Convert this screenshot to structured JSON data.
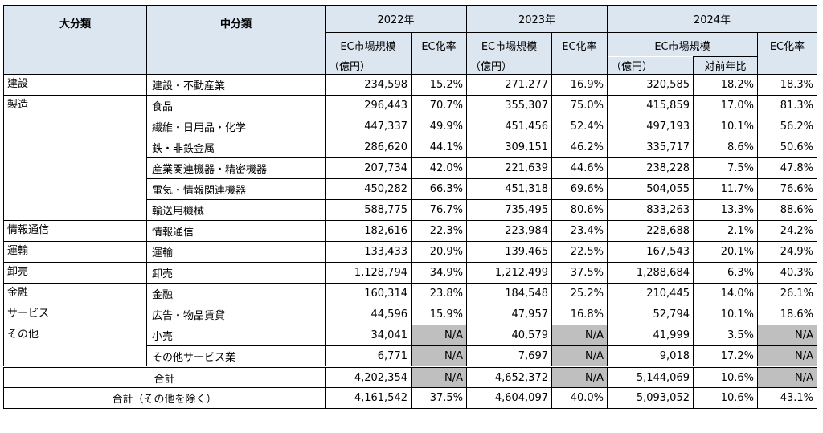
{
  "header": {
    "col_major": "大分類",
    "col_mid": "中分類",
    "years": [
      "2022年",
      "2023年",
      "2024年"
    ],
    "ec_size_label": "EC市場規模",
    "ec_rate_label": "EC化率",
    "unit_label": "（億円）",
    "yoy_label": "対前年比"
  },
  "rows": [
    {
      "major": "建設",
      "mid": "建設・不動産業",
      "v22": "234,598",
      "r22": "15.2%",
      "v23": "271,277",
      "r23": "16.9%",
      "v24": "320,585",
      "y24": "18.2%",
      "r24": "18.3%"
    },
    {
      "major": "製造",
      "mid": "食品",
      "v22": "296,443",
      "r22": "70.7%",
      "v23": "355,307",
      "r23": "75.0%",
      "v24": "415,859",
      "y24": "17.0%",
      "r24": "81.3%"
    },
    {
      "major": "",
      "mid": "繊維・日用品・化学",
      "v22": "447,337",
      "r22": "49.9%",
      "v23": "451,456",
      "r23": "52.4%",
      "v24": "497,193",
      "y24": "10.1%",
      "r24": "56.2%"
    },
    {
      "major": "",
      "mid": "鉄・非鉄金属",
      "v22": "286,620",
      "r22": "44.1%",
      "v23": "309,151",
      "r23": "46.2%",
      "v24": "335,717",
      "y24": "8.6%",
      "r24": "50.6%"
    },
    {
      "major": "",
      "mid": "産業関連機器・精密機器",
      "v22": "207,734",
      "r22": "42.0%",
      "v23": "221,639",
      "r23": "44.6%",
      "v24": "238,228",
      "y24": "7.5%",
      "r24": "47.8%"
    },
    {
      "major": "",
      "mid": "電気・情報関連機器",
      "v22": "450,282",
      "r22": "66.3%",
      "v23": "451,318",
      "r23": "69.6%",
      "v24": "504,055",
      "y24": "11.7%",
      "r24": "76.6%"
    },
    {
      "major": "",
      "mid": "輸送用機械",
      "v22": "588,775",
      "r22": "76.7%",
      "v23": "735,495",
      "r23": "80.6%",
      "v24": "833,263",
      "y24": "13.3%",
      "r24": "88.6%"
    },
    {
      "major": "情報通信",
      "mid": "情報通信",
      "v22": "182,616",
      "r22": "22.3%",
      "v23": "223,984",
      "r23": "23.4%",
      "v24": "228,688",
      "y24": "2.1%",
      "r24": "24.2%"
    },
    {
      "major": "運輸",
      "mid": "運輸",
      "v22": "133,433",
      "r22": "20.9%",
      "v23": "139,465",
      "r23": "22.5%",
      "v24": "167,543",
      "y24": "20.1%",
      "r24": "24.9%"
    },
    {
      "major": "卸売",
      "mid": "卸売",
      "v22": "1,128,794",
      "r22": "34.9%",
      "v23": "1,212,499",
      "r23": "37.5%",
      "v24": "1,288,684",
      "y24": "6.3%",
      "r24": "40.3%"
    },
    {
      "major": "金融",
      "mid": "金融",
      "v22": "160,314",
      "r22": "23.8%",
      "v23": "184,548",
      "r23": "25.2%",
      "v24": "210,445",
      "y24": "14.0%",
      "r24": "26.1%"
    },
    {
      "major": "サービス",
      "mid": "広告・物品賃貸",
      "v22": "44,596",
      "r22": "15.9%",
      "v23": "47,957",
      "r23": "16.8%",
      "v24": "52,794",
      "y24": "10.1%",
      "r24": "18.6%"
    },
    {
      "major": "その他",
      "mid": "小売",
      "v22": "34,041",
      "r22": "N/A",
      "v23": "40,579",
      "r23": "N/A",
      "v24": "41,999",
      "y24": "3.5%",
      "r24": "N/A"
    },
    {
      "major": "",
      "mid": "その他サービス業",
      "v22": "6,771",
      "r22": "N/A",
      "v23": "7,697",
      "r23": "N/A",
      "v24": "9,018",
      "y24": "17.2%",
      "r24": "N/A"
    }
  ],
  "total": {
    "label": "合計",
    "v22": "4,202,354",
    "r22": "N/A",
    "v23": "4,652,372",
    "r23": "N/A",
    "v24": "5,144,069",
    "y24": "10.6%",
    "r24": "N/A"
  },
  "total_ex": {
    "label": "合計（その他を除く）",
    "v22": "4,161,542",
    "r22": "37.5%",
    "v23": "4,604,097",
    "r23": "40.0%",
    "v24": "5,093,052",
    "y24": "10.6%",
    "r24": "43.1%"
  },
  "colors": {
    "header_bg": "#dce6f1",
    "na_bg": "#bfbfbf"
  }
}
